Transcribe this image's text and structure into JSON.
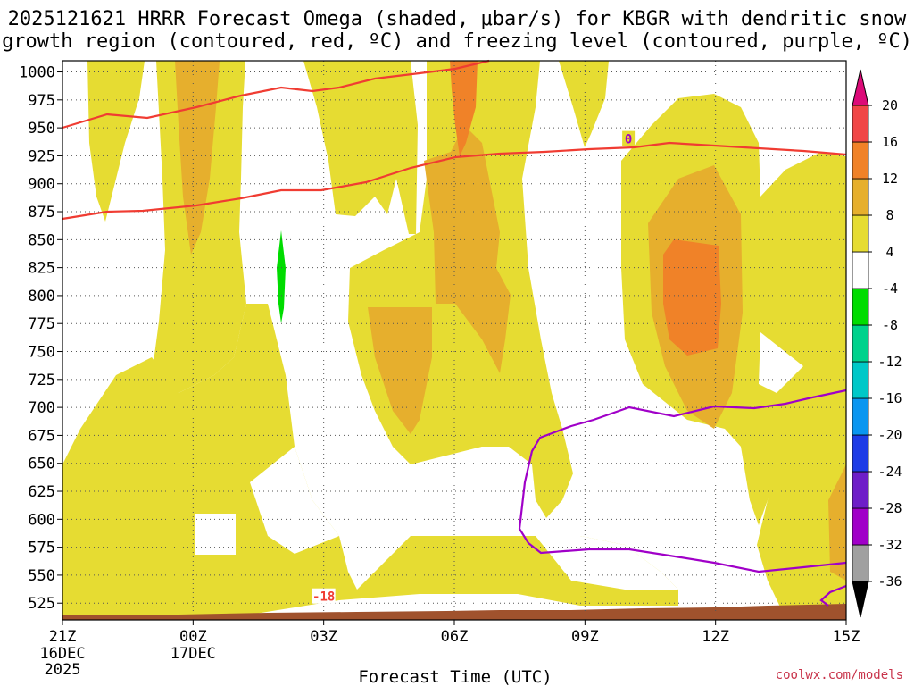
{
  "chart_data": {
    "type": "heatmap",
    "title_line1": "2025121621 HRRR Forecast Omega (shaded, μbar/s) for KBGR with dendritic snow",
    "title_line2": "growth region (contoured, red, ºC) and freezing level (contoured, purple, ºC)",
    "xlabel": "Forecast Time (UTC)",
    "credit": "coolwx.com/models",
    "x_range_hours": [
      0,
      18
    ],
    "y_range_mb": [
      1010,
      510
    ],
    "x_ticks": [
      {
        "hour": 0,
        "label": "21Z",
        "sub1": "16DEC",
        "sub2": "2025"
      },
      {
        "hour": 3,
        "label": "00Z",
        "sub1": "17DEC",
        "sub2": ""
      },
      {
        "hour": 6,
        "label": "03Z",
        "sub1": "",
        "sub2": ""
      },
      {
        "hour": 9,
        "label": "06Z",
        "sub1": "",
        "sub2": ""
      },
      {
        "hour": 12,
        "label": "09Z",
        "sub1": "",
        "sub2": ""
      },
      {
        "hour": 15,
        "label": "12Z",
        "sub1": "",
        "sub2": ""
      },
      {
        "hour": 18,
        "label": "15Z",
        "sub1": "",
        "sub2": ""
      }
    ],
    "y_ticks": [
      525,
      550,
      575,
      600,
      625,
      650,
      675,
      700,
      725,
      750,
      775,
      800,
      825,
      850,
      875,
      900,
      925,
      950,
      975,
      1000
    ],
    "colorbar": {
      "levels": [
        -36,
        -32,
        -28,
        -24,
        -20,
        -16,
        -12,
        -8,
        -4,
        4,
        8,
        12,
        16,
        20
      ],
      "colors": [
        "#000000",
        "#a0a0a0",
        "#a000c8",
        "#6e1ec8",
        "#1e3ce6",
        "#0a96f0",
        "#00c8c8",
        "#00d28c",
        "#00dc00",
        "#ffffff",
        "#e6dc32",
        "#e6af2d",
        "#f08228",
        "#f04646",
        "#dc0a78"
      ]
    },
    "contours": {
      "dgz_labels": [
        {
          "label": "-18",
          "hour": 6.0,
          "mb": 531
        }
      ],
      "freezing_labels": [
        {
          "label": "0",
          "hour": 13.0,
          "mb": 940
        }
      ]
    },
    "terrain": {
      "color": "#a0522d"
    }
  }
}
